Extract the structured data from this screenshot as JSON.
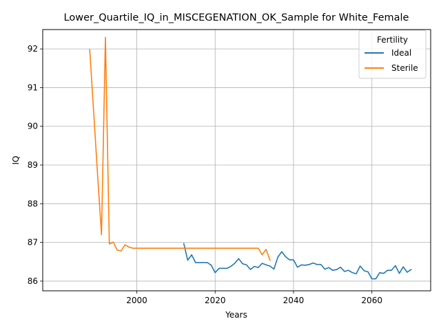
{
  "chart_data": {
    "type": "line",
    "title": "Lower_Quartile_IQ_in_MISCEGENATION_OK_Sample for White_Female",
    "xlabel": "Years",
    "ylabel": "IQ",
    "xlim": [
      1976,
      2075
    ],
    "ylim": [
      85.75,
      92.5
    ],
    "xticks": [
      2000,
      2020,
      2040,
      2060
    ],
    "yticks": [
      86,
      87,
      88,
      89,
      90,
      91,
      92
    ],
    "grid": true,
    "legend": {
      "title": "Fertility",
      "placement": "top-right"
    },
    "series": [
      {
        "name": "Ideal",
        "color": "#1f77b4",
        "x": [
          2012,
          2013,
          2014,
          2015,
          2016,
          2017,
          2018,
          2019,
          2020,
          2021,
          2022,
          2023,
          2024,
          2025,
          2026,
          2027,
          2028,
          2029,
          2030,
          2031,
          2032,
          2033,
          2034,
          2035,
          2036,
          2037,
          2038,
          2039,
          2040,
          2041,
          2042,
          2043,
          2044,
          2045,
          2046,
          2047,
          2048,
          2049,
          2050,
          2051,
          2052,
          2053,
          2054,
          2055,
          2056,
          2057,
          2058,
          2059,
          2060,
          2061,
          2062,
          2063,
          2064,
          2065,
          2066,
          2067,
          2068,
          2069,
          2070
        ],
        "y": [
          86.97,
          86.54,
          86.68,
          86.48,
          86.48,
          86.48,
          86.48,
          86.41,
          86.22,
          86.33,
          86.33,
          86.33,
          86.38,
          86.46,
          86.58,
          86.45,
          86.42,
          86.3,
          86.38,
          86.35,
          86.46,
          86.42,
          86.39,
          86.31,
          86.62,
          86.76,
          86.63,
          86.55,
          86.55,
          86.36,
          86.42,
          86.41,
          86.43,
          86.47,
          86.43,
          86.43,
          86.31,
          86.35,
          86.28,
          86.3,
          86.36,
          86.25,
          86.28,
          86.22,
          86.19,
          86.39,
          86.27,
          86.24,
          86.06,
          86.06,
          86.22,
          86.2,
          86.28,
          86.28,
          86.4,
          86.2,
          86.37,
          86.23,
          86.3
        ]
      },
      {
        "name": "Sterile",
        "color": "#ff7f0e",
        "x": [
          1988,
          1989,
          1990,
          1991,
          1992,
          1993,
          1994,
          1995,
          1996,
          1997,
          1998,
          1999,
          2000,
          2001,
          2002,
          2003,
          2004,
          2005,
          2006,
          2007,
          2008,
          2009,
          2010,
          2011,
          2012,
          2013,
          2014,
          2015,
          2016,
          2017,
          2018,
          2019,
          2020,
          2021,
          2022,
          2023,
          2024,
          2025,
          2026,
          2027,
          2028,
          2029,
          2030,
          2031,
          2032,
          2033,
          2034
        ],
        "y": [
          91.98,
          90.37,
          88.75,
          87.2,
          92.3,
          86.96,
          87.01,
          86.8,
          86.78,
          86.94,
          86.88,
          86.85,
          86.85,
          86.85,
          86.85,
          86.85,
          86.85,
          86.85,
          86.85,
          86.85,
          86.85,
          86.85,
          86.85,
          86.85,
          86.85,
          86.85,
          86.85,
          86.85,
          86.85,
          86.85,
          86.85,
          86.85,
          86.85,
          86.85,
          86.85,
          86.85,
          86.85,
          86.85,
          86.85,
          86.85,
          86.85,
          86.85,
          86.85,
          86.85,
          86.68,
          86.82,
          86.54
        ]
      }
    ]
  }
}
